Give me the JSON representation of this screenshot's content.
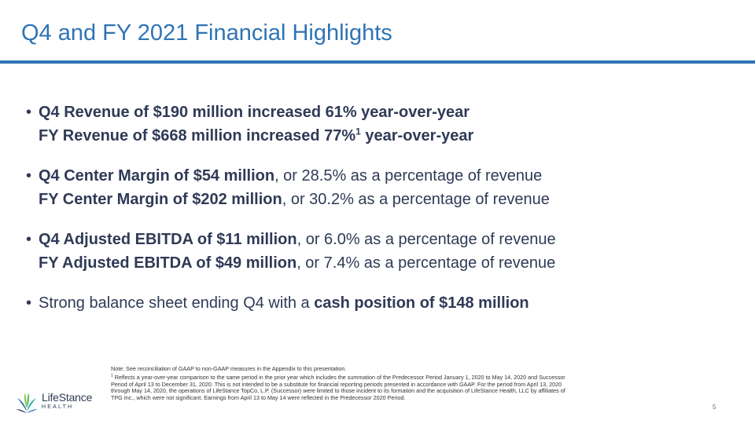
{
  "header": {
    "title": "Q4 and FY 2021 Financial Highlights"
  },
  "bullets": [
    {
      "lines": [
        {
          "bold": "Q4 Revenue of $190 million increased 61% year-over-year",
          "rest": ""
        },
        {
          "bold": "FY Revenue of $668 million increased 77%",
          "sup": "1",
          "bold_after": " year-over-year",
          "rest": ""
        }
      ]
    },
    {
      "lines": [
        {
          "bold": "Q4 Center Margin of $54 million",
          "rest": ", or 28.5% as a percentage of revenue"
        },
        {
          "bold": "FY Center Margin of $202 million",
          "rest": ", or 30.2% as a percentage of revenue"
        }
      ]
    },
    {
      "lines": [
        {
          "bold": "Q4 Adjusted EBITDA of $11 million",
          "rest": ", or 6.0% as a percentage of revenue"
        },
        {
          "bold": "FY Adjusted EBITDA of $49 million",
          "rest": ", or 7.4% as a percentage of revenue"
        }
      ]
    },
    {
      "lines": [
        {
          "pre": "Strong balance sheet ending Q4 with a ",
          "bold": "cash position of $148 million",
          "rest": ""
        }
      ]
    }
  ],
  "notes": {
    "main": "Note:  See reconciliation of GAAP to non-GAAP measures in the Appendix to this presentation.",
    "footnote_marker": "1",
    "footnote": "Reflects a year-over-year comparison to the same period in the prior year which includes the summation of the Predecessor Period January 1, 2020 to May 14, 2020 and Successor Period of April 13 to December 31, 2020. This is not intended to be a substitute for financial reporting periods presented in accordance with GAAP. For the period from April 13, 2020 through May 14, 2020, the operations of LifeStance TopCo, L.P. (Successor) were limited to those incident to its formation and the acquisition of LifeStance Health, LLC by affiliates of TPG Inc., which were not significant. Earnings from April 13 to May 14 were reflected in the Predecessor 2020 Period."
  },
  "logo": {
    "name": "LifeStance",
    "sub": "HEALTH",
    "colors": {
      "green": "#8cc63f",
      "teal": "#1fa9a5",
      "blue": "#2e74b5",
      "navy": "#2f3a56"
    }
  },
  "footer": {
    "page_number": "5"
  },
  "colors": {
    "title": "#2e74b5",
    "rule": "#2e74b5",
    "body_text": "#2f3a56"
  }
}
